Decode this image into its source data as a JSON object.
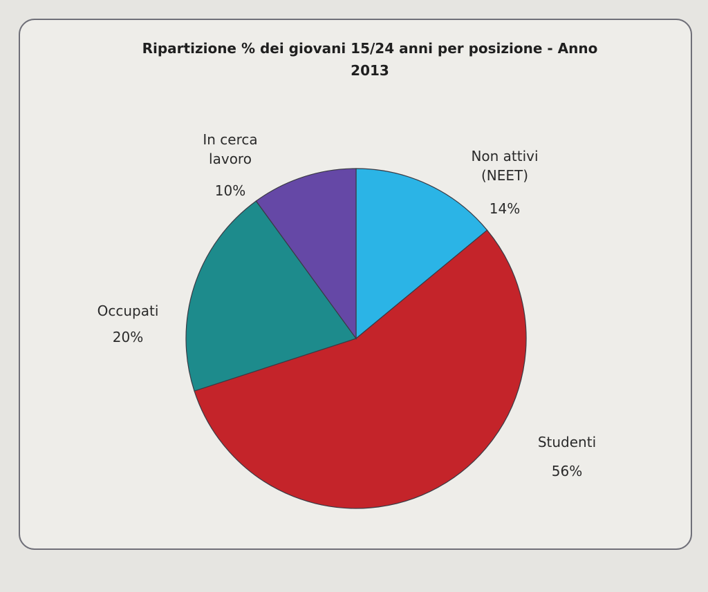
{
  "chart_data": {
    "type": "pie",
    "title": "Ripartizione % dei giovani 15/24 anni per posizione - Anno 2013",
    "categories": [
      "Non attivi (NEET)",
      "Studenti",
      "Occupati",
      "In cerca lavoro"
    ],
    "values": [
      14,
      56,
      20,
      10
    ],
    "value_labels": [
      "14%",
      "56%",
      "20%",
      "10%"
    ],
    "colors": [
      "#2bb4e6",
      "#c4242a",
      "#1d8b8c",
      "#6548a6"
    ]
  }
}
